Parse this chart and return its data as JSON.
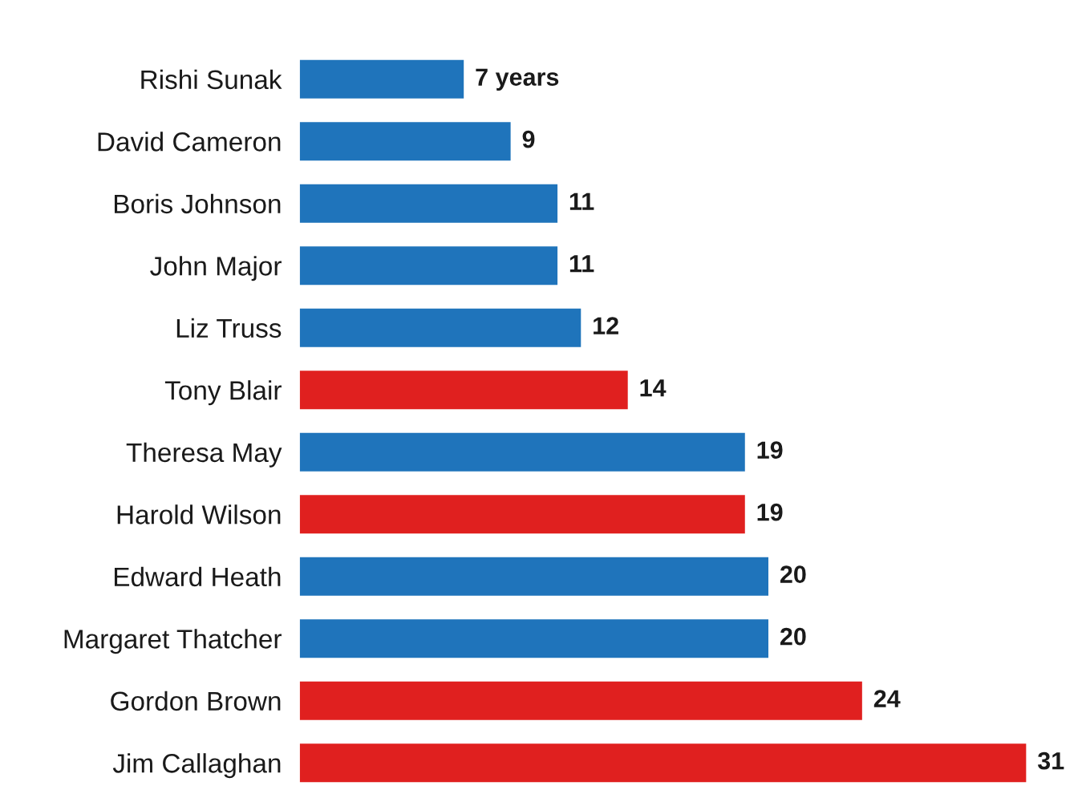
{
  "chart_data": {
    "type": "bar",
    "orientation": "horizontal",
    "categories": [
      "Rishi Sunak",
      "David Cameron",
      "Boris Johnson",
      "John Major",
      "Liz Truss",
      "Tony Blair",
      "Theresa May",
      "Harold Wilson",
      "Edward Heath",
      "Margaret Thatcher",
      "Gordon Brown",
      "Jim Callaghan"
    ],
    "values": [
      7,
      9,
      11,
      11,
      12,
      14,
      19,
      19,
      20,
      20,
      24,
      31
    ],
    "colors": [
      "#1f74bb",
      "#1f74bb",
      "#1f74bb",
      "#1f74bb",
      "#1f74bb",
      "#e0201f",
      "#1f74bb",
      "#e0201f",
      "#1f74bb",
      "#1f74bb",
      "#e0201f",
      "#e0201f"
    ],
    "value_labels": [
      "7 years",
      "9",
      "11",
      "11",
      "12",
      "14",
      "19",
      "19",
      "20",
      "20",
      "24",
      "31"
    ],
    "tick_labels": "y",
    "grid": false
  }
}
